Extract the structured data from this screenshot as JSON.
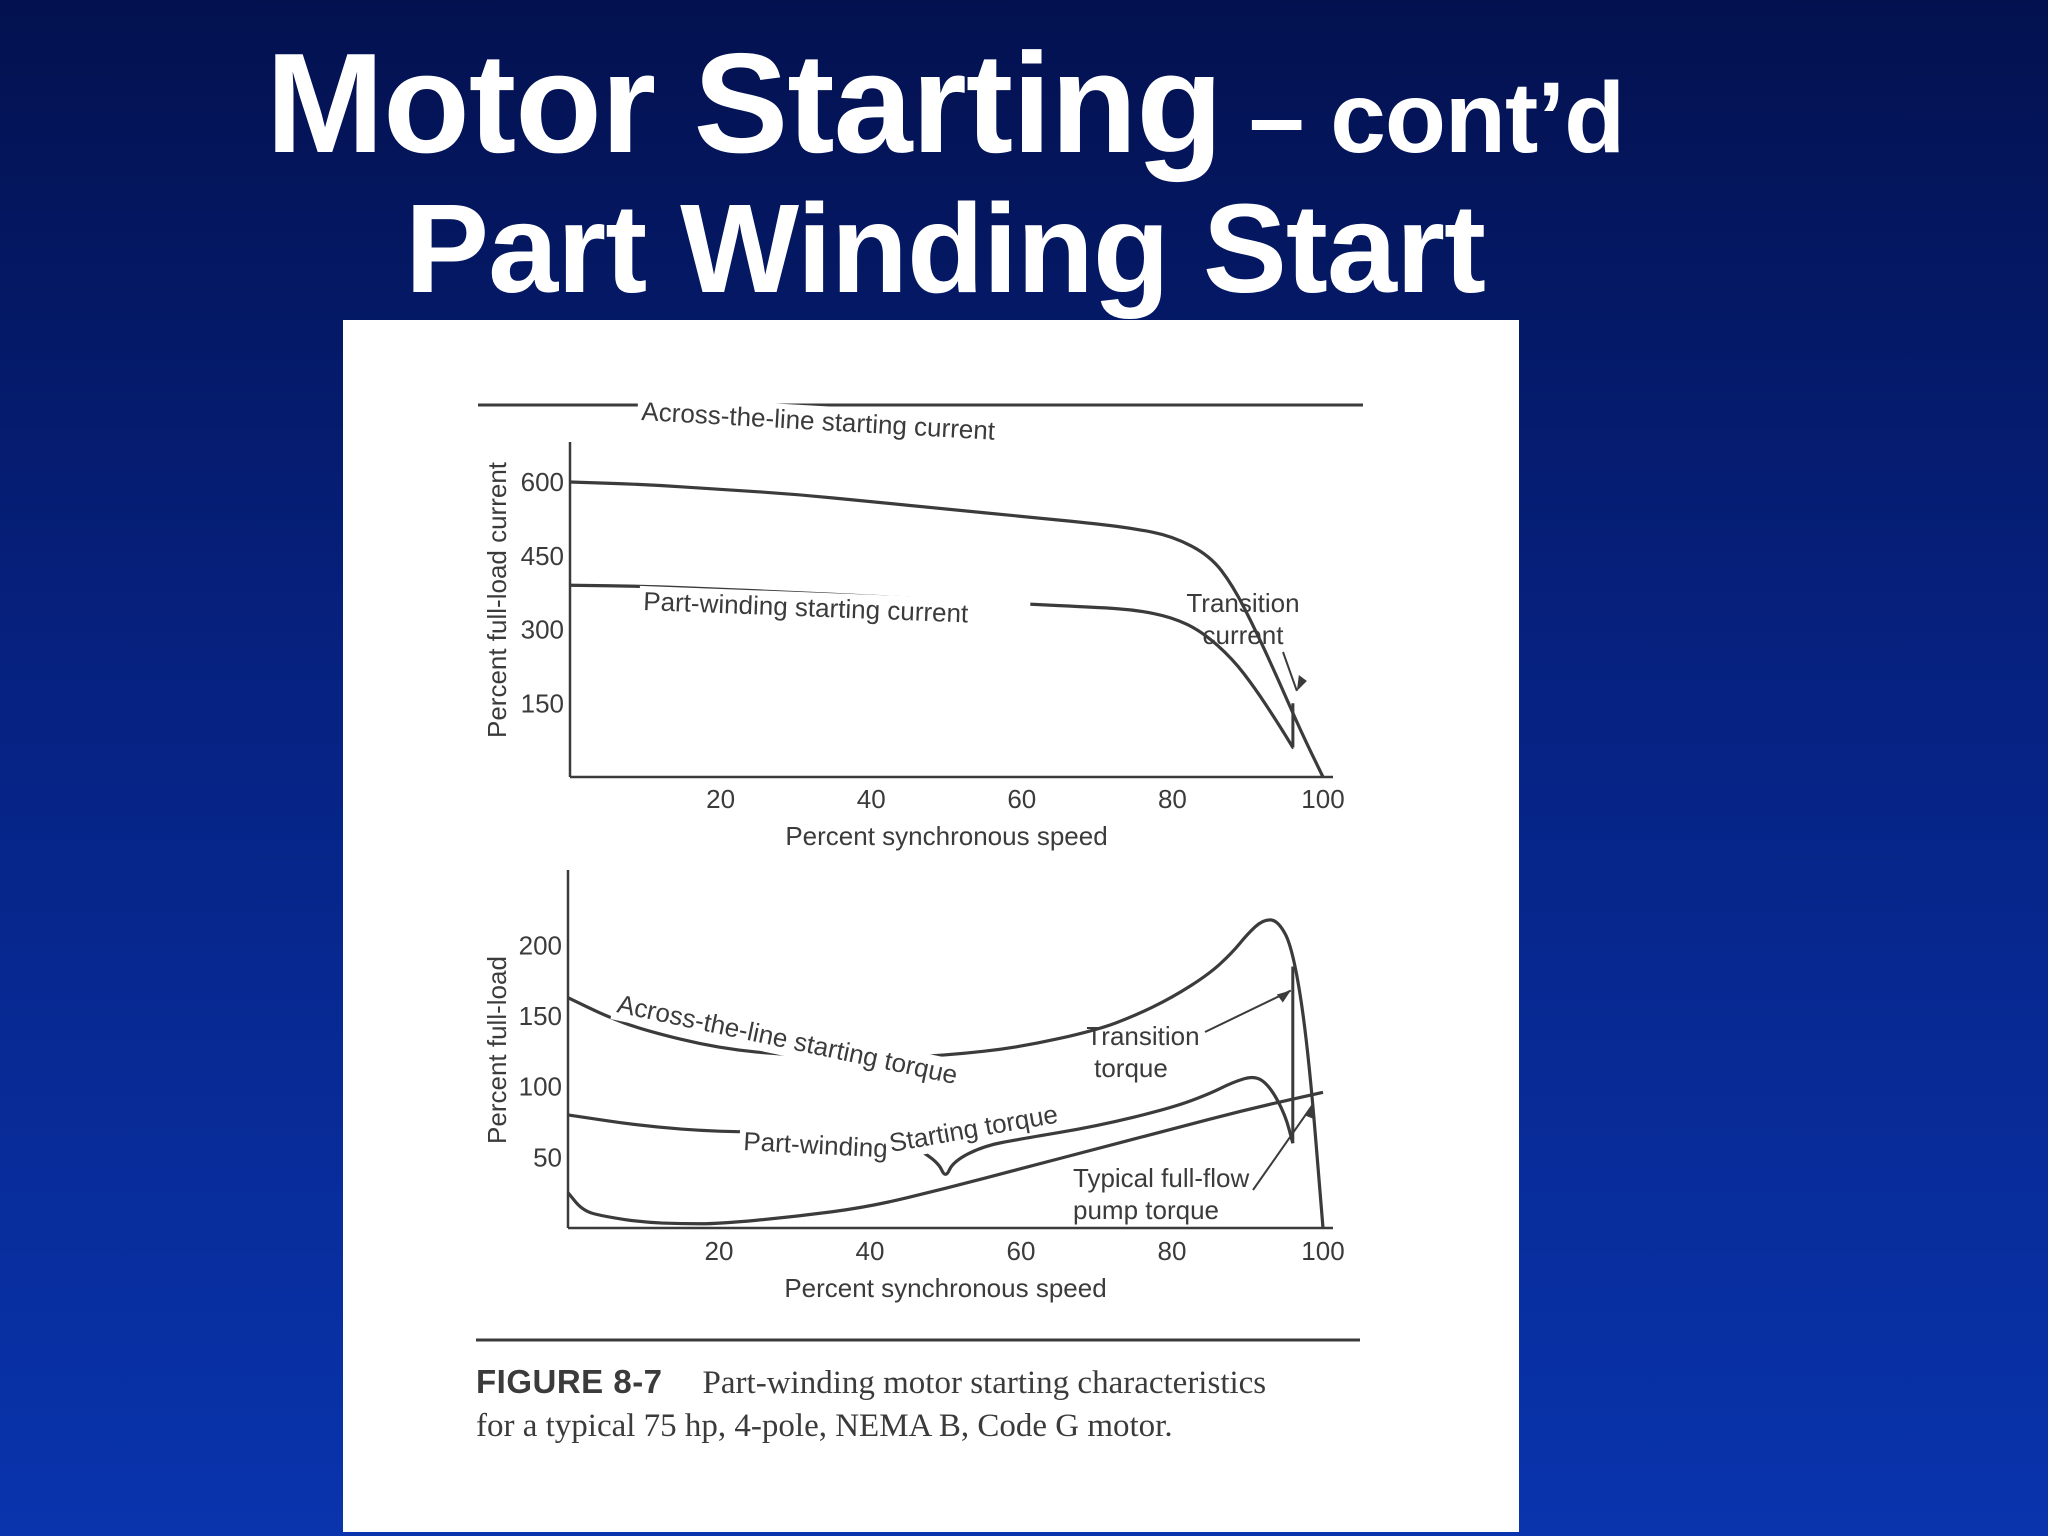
{
  "slide": {
    "title_main": "Motor Starting",
    "title_suffix": " – cont’d",
    "subtitle": "Part Winding Start",
    "colors": {
      "background_top": "#03114f",
      "background_bottom": "#0934ad",
      "title": "#ffffff",
      "figure_ink": "#3b3b3b"
    }
  },
  "figure": {
    "caption_number": "FIGURE 8-7",
    "caption_text": "Part-winding motor starting characteristics",
    "caption_text2": "for a typical 75 hp, 4-pole, NEMA B, Code G motor."
  },
  "chart_data": [
    {
      "type": "line",
      "xlabel": "Percent synchronous speed",
      "ylabel": "Percent full-load current",
      "x_ticks": [
        20,
        40,
        60,
        80,
        100
      ],
      "y_ticks": [
        150,
        300,
        450,
        600
      ],
      "xlim": [
        0,
        100
      ],
      "ylim": [
        0,
        600
      ],
      "series": [
        {
          "name": "Across-the-line starting current",
          "x": [
            0,
            10,
            20,
            30,
            40,
            50,
            60,
            70,
            75,
            80,
            85,
            88,
            91,
            94,
            97,
            100
          ],
          "y": [
            600,
            595,
            585,
            575,
            560,
            545,
            530,
            515,
            505,
            490,
            450,
            390,
            300,
            200,
            95,
            0
          ]
        },
        {
          "name": "Part-winding starting current",
          "x": [
            0,
            10,
            20,
            30,
            40,
            50,
            60,
            70,
            75,
            80,
            84,
            88,
            91,
            94,
            96
          ],
          "y": [
            390,
            388,
            382,
            375,
            368,
            360,
            352,
            345,
            340,
            325,
            295,
            240,
            180,
            110,
            60
          ]
        }
      ],
      "annotations": [
        {
          "text": "Transition",
          "text2": "current",
          "x": 96
        }
      ]
    },
    {
      "type": "line",
      "xlabel": "Percent synchronous speed",
      "ylabel": "Percent full-load",
      "x_ticks": [
        20,
        40,
        60,
        80,
        100
      ],
      "y_ticks": [
        50,
        100,
        150,
        200
      ],
      "xlim": [
        0,
        100
      ],
      "ylim": [
        0,
        225
      ],
      "series": [
        {
          "name": "Across-the-line starting torque",
          "x": [
            0,
            5,
            10,
            20,
            30,
            40,
            50,
            60,
            70,
            75,
            80,
            85,
            88,
            90,
            92,
            94,
            96,
            98,
            100
          ],
          "y": [
            163,
            150,
            140,
            127,
            122,
            120,
            122,
            128,
            140,
            150,
            163,
            180,
            195,
            208,
            218,
            218,
            198,
            130,
            0
          ]
        },
        {
          "name": "Part-winding starting torque",
          "x": [
            0,
            10,
            20,
            30,
            40,
            45,
            49,
            50,
            51,
            55,
            60,
            70,
            80,
            85,
            88,
            91,
            93,
            95,
            96
          ],
          "y": [
            80,
            72,
            68,
            68,
            65,
            60,
            47,
            35,
            47,
            58,
            63,
            72,
            85,
            95,
            103,
            108,
            100,
            80,
            60
          ]
        },
        {
          "name": "Typical full-flow pump torque",
          "x": [
            0,
            2,
            5,
            10,
            15,
            20,
            30,
            40,
            50,
            60,
            70,
            80,
            90,
            100
          ],
          "y": [
            25,
            12,
            8,
            4,
            3,
            3,
            8,
            15,
            28,
            42,
            56,
            70,
            84,
            96
          ]
        }
      ],
      "annotations": [
        {
          "text": "Transition",
          "text2": "torque",
          "x": 96
        },
        {
          "text": "Typical full-flow",
          "text2": "pump torque",
          "x": 99
        }
      ]
    }
  ]
}
